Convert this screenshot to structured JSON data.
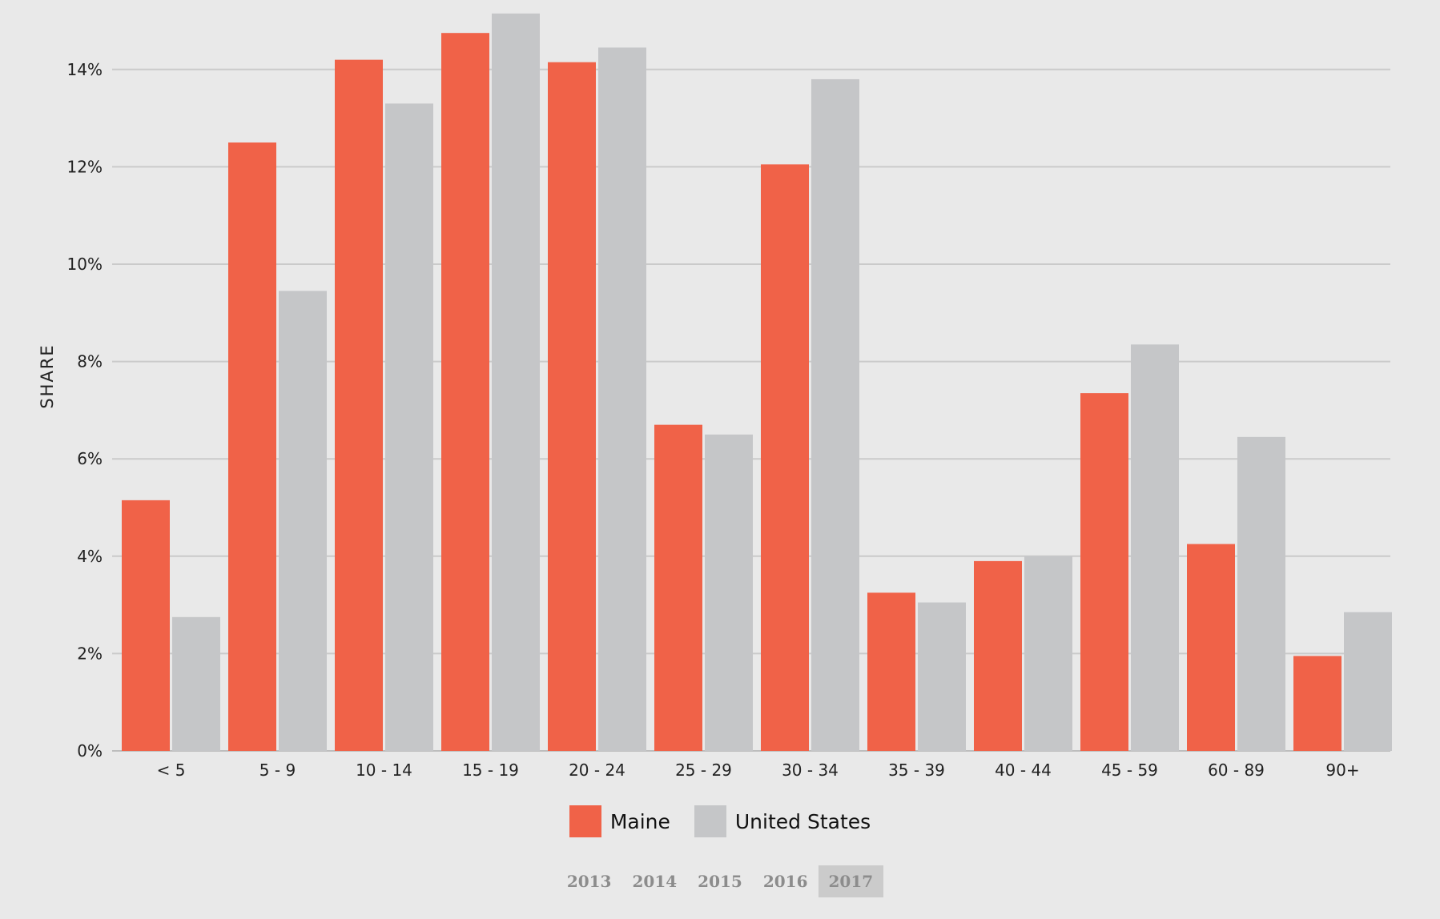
{
  "chart_data": {
    "type": "bar",
    "categories": [
      "< 5",
      "5 - 9",
      "10 - 14",
      "15 - 19",
      "20 - 24",
      "25 - 29",
      "30 - 34",
      "35 - 39",
      "40 - 44",
      "45 - 59",
      "60 - 89",
      "90+"
    ],
    "series": [
      {
        "name": "Maine",
        "color": "#f06248",
        "values": [
          5.15,
          12.5,
          14.2,
          14.75,
          14.15,
          6.7,
          12.05,
          3.25,
          3.9,
          7.35,
          4.25,
          1.95
        ]
      },
      {
        "name": "United States",
        "color": "#c5c6c8",
        "values": [
          2.75,
          9.45,
          13.3,
          15.15,
          14.45,
          6.5,
          13.8,
          3.05,
          4.0,
          8.35,
          6.45,
          2.85
        ]
      }
    ],
    "ylabel": "SHARE",
    "ylim": [
      0,
      15.5
    ],
    "yticks": [
      0,
      2,
      4,
      6,
      8,
      10,
      12,
      14
    ],
    "ytick_suffix": "%",
    "grid": true
  },
  "legend": {
    "items": [
      {
        "label": "Maine",
        "color": "#f06248"
      },
      {
        "label": "United States",
        "color": "#c5c6c8"
      }
    ]
  },
  "years": {
    "options": [
      "2013",
      "2014",
      "2015",
      "2016",
      "2017"
    ],
    "selected": "2017"
  }
}
